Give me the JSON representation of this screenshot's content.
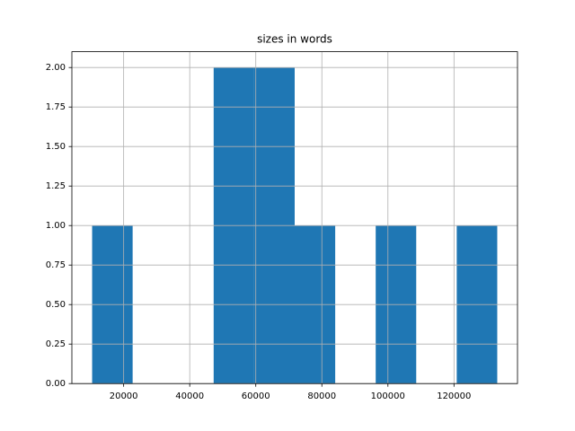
{
  "chart_data": {
    "type": "histogram",
    "title": "sizes in words",
    "bins": [
      10455,
      22719,
      34983,
      47247,
      59511,
      71775,
      84039,
      96303,
      108567,
      120831,
      133095
    ],
    "values": [
      1,
      0,
      0,
      2,
      2,
      1,
      0,
      1,
      0,
      1
    ],
    "color": "#1f77b4",
    "xlim": [
      4323,
      139227
    ],
    "xticks": [
      20000,
      40000,
      60000,
      80000,
      100000,
      120000
    ],
    "ylim": [
      0,
      2.1
    ],
    "yticks": [
      {
        "value": 0,
        "label": "0.00"
      },
      {
        "value": 0.25,
        "label": "0.25"
      },
      {
        "value": 0.5,
        "label": "0.50"
      },
      {
        "value": 0.75,
        "label": "0.75"
      },
      {
        "value": 1,
        "label": "1.00"
      },
      {
        "value": 1.25,
        "label": "1.25"
      },
      {
        "value": 1.5,
        "label": "1.50"
      },
      {
        "value": 1.75,
        "label": "1.75"
      },
      {
        "value": 2,
        "label": "2.00"
      }
    ],
    "grid": true
  }
}
